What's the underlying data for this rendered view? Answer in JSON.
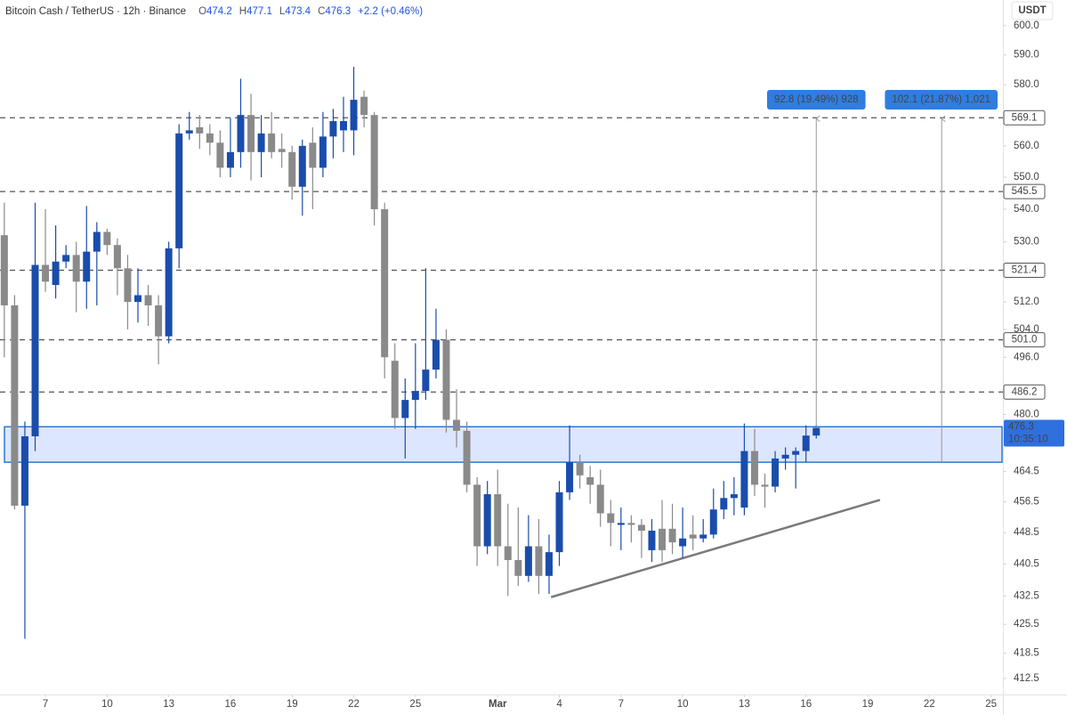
{
  "chart_data": {
    "type": "candlestick",
    "title": "Bitcoin Cash / TetherUS · 12h · Binance",
    "ohlc_labels": [
      "O",
      "H",
      "L",
      "C"
    ],
    "change": "+2.2 (+0.46%)",
    "y_unit": "USDT",
    "countdown": "10:35:10",
    "up_color": "#1a4dab",
    "down_color": "#8a8a8a",
    "log_scale": true,
    "grid": false,
    "x": [
      5,
      5.5,
      6,
      6.5,
      7,
      7.5,
      8,
      8.5,
      9,
      9.5,
      10,
      10.5,
      11,
      11.5,
      12,
      12.5,
      13,
      13.5,
      14,
      14.5,
      15,
      15.5,
      16,
      16.5,
      17,
      17.5,
      18,
      18.5,
      19,
      19.5,
      20,
      20.5,
      21,
      21.5,
      22,
      22.5,
      23,
      23.5,
      24,
      24.5,
      25,
      25.5,
      26,
      26.5,
      27,
      27.5,
      28,
      28.5,
      29,
      29.5,
      30,
      30.5,
      31,
      31.5,
      32,
      32.5,
      33,
      33.5,
      34,
      34.5,
      35,
      35.5,
      36,
      36.5,
      37,
      37.5,
      38,
      38.5,
      39,
      39.5,
      40,
      40.5,
      41,
      41.5,
      42,
      42.5,
      43,
      43.5,
      44,
      44.5
    ],
    "open": [
      532,
      511,
      455.5,
      474,
      523,
      517,
      524,
      526,
      518,
      527,
      533,
      529,
      522,
      512,
      514,
      511,
      502,
      528,
      564,
      566,
      564,
      561,
      553,
      558,
      570,
      558,
      564,
      559,
      558,
      547,
      561,
      553,
      563,
      565,
      565,
      576,
      570,
      540,
      495,
      479,
      484,
      486.5,
      492.5,
      501,
      478.5,
      475.5,
      461,
      445,
      458.5,
      445,
      441.5,
      437.5,
      445,
      437.5,
      443.5,
      459,
      467,
      463,
      461,
      453.5,
      450.5,
      451,
      450.5,
      444,
      449.5,
      449.5,
      445,
      448,
      447,
      448,
      454.5,
      457.5,
      455,
      470,
      461,
      460.5,
      468,
      469,
      470,
      474.2
    ],
    "high": [
      542,
      514,
      478,
      542,
      540,
      535,
      529,
      530,
      541,
      536,
      534,
      531,
      526,
      522,
      517,
      514,
      530,
      567,
      571,
      570,
      567,
      565,
      569,
      582,
      577,
      570,
      571,
      564,
      560,
      562,
      566,
      571,
      572,
      576,
      586,
      578,
      571,
      542,
      500,
      490,
      500,
      522,
      510,
      504,
      487,
      478,
      463,
      462,
      465,
      456,
      455,
      453,
      452,
      448,
      462,
      477,
      469,
      466,
      465,
      457,
      455,
      453,
      452,
      452,
      457,
      456,
      455,
      453,
      452,
      460,
      462,
      463,
      477.5,
      476,
      464,
      470,
      471,
      471,
      477,
      477.1
    ],
    "low": [
      496,
      454.5,
      422,
      470,
      515,
      513,
      522,
      509,
      510,
      511,
      526,
      514,
      504,
      506,
      505,
      494,
      500,
      522,
      562,
      559,
      557,
      550,
      550,
      553,
      549,
      550,
      556,
      553,
      543,
      538,
      540,
      550,
      556,
      558,
      557,
      566,
      535,
      490,
      476,
      468,
      476,
      484,
      490,
      475,
      471,
      459,
      440,
      443,
      440,
      432.5,
      435,
      436,
      433,
      433,
      440,
      457,
      460,
      456,
      450,
      445,
      444,
      446,
      442,
      441,
      441,
      443,
      442,
      444,
      446,
      447,
      452,
      453,
      453,
      458,
      455,
      459,
      465,
      460,
      467,
      473.4
    ],
    "close": [
      511,
      455.5,
      474,
      523,
      518,
      524,
      526,
      518,
      527,
      533,
      529,
      522,
      512,
      514,
      511,
      502,
      528,
      564,
      565,
      564,
      561,
      553,
      558,
      570,
      558,
      564,
      558,
      558,
      547,
      560,
      553,
      563,
      568,
      568,
      575,
      570,
      540,
      496,
      479,
      484,
      486.5,
      492.5,
      501,
      478.5,
      475.5,
      461,
      445,
      458.5,
      445,
      441.5,
      437.5,
      445,
      437.5,
      443.5,
      459,
      467,
      463.5,
      461,
      453.5,
      451,
      451,
      450.5,
      449,
      449,
      444,
      446,
      447,
      447,
      448,
      454.5,
      457.5,
      458.5,
      470,
      461,
      460.5,
      468,
      469,
      470,
      474.2,
      476.3
    ],
    "xlim": [
      4.79,
      53.58
    ],
    "xticks": [
      7,
      10,
      13,
      16,
      19,
      22,
      25,
      {
        "value": 29,
        "label": "Mar"
      },
      {
        "value": 32,
        "label": "4"
      },
      {
        "value": 35,
        "label": "7"
      },
      {
        "value": 38,
        "label": "10"
      },
      {
        "value": 41,
        "label": "13"
      },
      {
        "value": 44,
        "label": "16"
      },
      {
        "value": 47,
        "label": "19"
      },
      {
        "value": 50,
        "label": "22"
      },
      {
        "value": 53,
        "label": "25"
      }
    ],
    "ylim": [
      408.7,
      608.9
    ],
    "yticks": [
      {
        "value": 600,
        "label": "600.0"
      },
      {
        "value": 590,
        "label": "590.0"
      },
      {
        "value": 580,
        "label": "580.0"
      },
      {
        "value": 560,
        "label": "560.0"
      },
      {
        "value": 550,
        "label": "550.0"
      },
      {
        "value": 540,
        "label": "540.0"
      },
      {
        "value": 530,
        "label": "530.0"
      },
      {
        "value": 512,
        "label": "512.0"
      },
      {
        "value": 504,
        "label": "504.0"
      },
      {
        "value": 496,
        "label": "496.0"
      },
      {
        "value": 480,
        "label": "480.0"
      },
      464.5,
      456.5,
      448.5,
      440.5,
      432.5,
      425.5,
      418.5,
      412.5
    ],
    "levels": [
      569.1,
      545.5,
      521.4,
      {
        "value": 501,
        "label": "501.0"
      },
      486.2
    ],
    "zone": [
      467.0,
      476.6
    ],
    "trend": {
      "x": [
        31.6,
        47.6
      ],
      "y": [
        432.2,
        457.0
      ]
    },
    "measures": [
      {
        "label": "92.8 (19.49%) 928",
        "x": 44.5,
        "from": 476.3,
        "to": 569.1
      },
      {
        "label": "102.1 (21.87%) 1,021",
        "x": 50.6,
        "from": 467.0,
        "to": 569.1
      }
    ]
  }
}
